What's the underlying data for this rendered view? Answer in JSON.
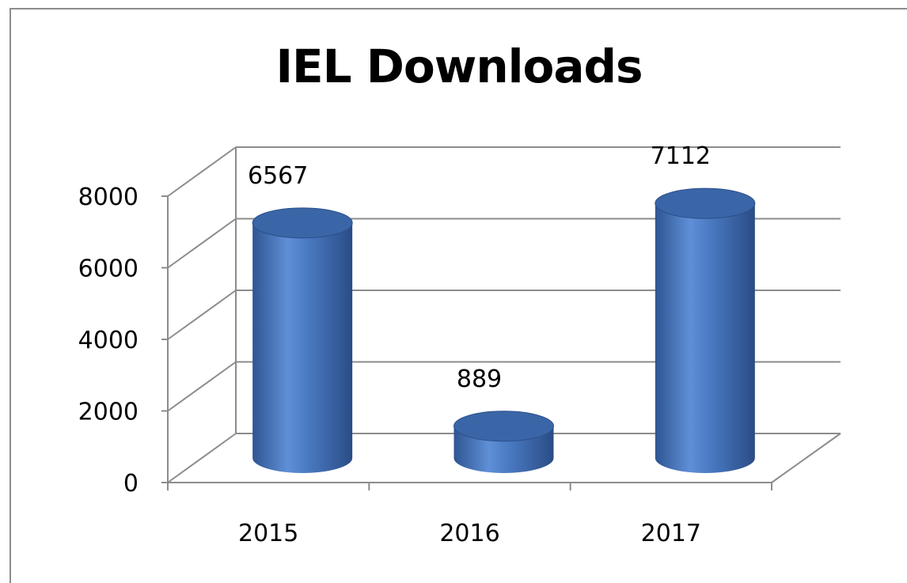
{
  "chart_data": {
    "type": "bar",
    "title": "IEL Downloads",
    "categories": [
      "2015",
      "2016",
      "2017"
    ],
    "values": [
      6567,
      889,
      7112
    ],
    "data_labels": [
      "6567",
      "889",
      "7112"
    ],
    "ylim": [
      0,
      8000
    ],
    "yticks": [
      0,
      2000,
      4000,
      6000,
      8000
    ],
    "ytick_labels": [
      "0",
      "2000",
      "4000",
      "6000",
      "8000"
    ],
    "style": "3d-cylinder",
    "grid": true,
    "legend": "none",
    "colors": {
      "bar": "#4a7ac2",
      "bar_dark": "#2b4f8a",
      "bar_top": "#3a66a8"
    }
  }
}
